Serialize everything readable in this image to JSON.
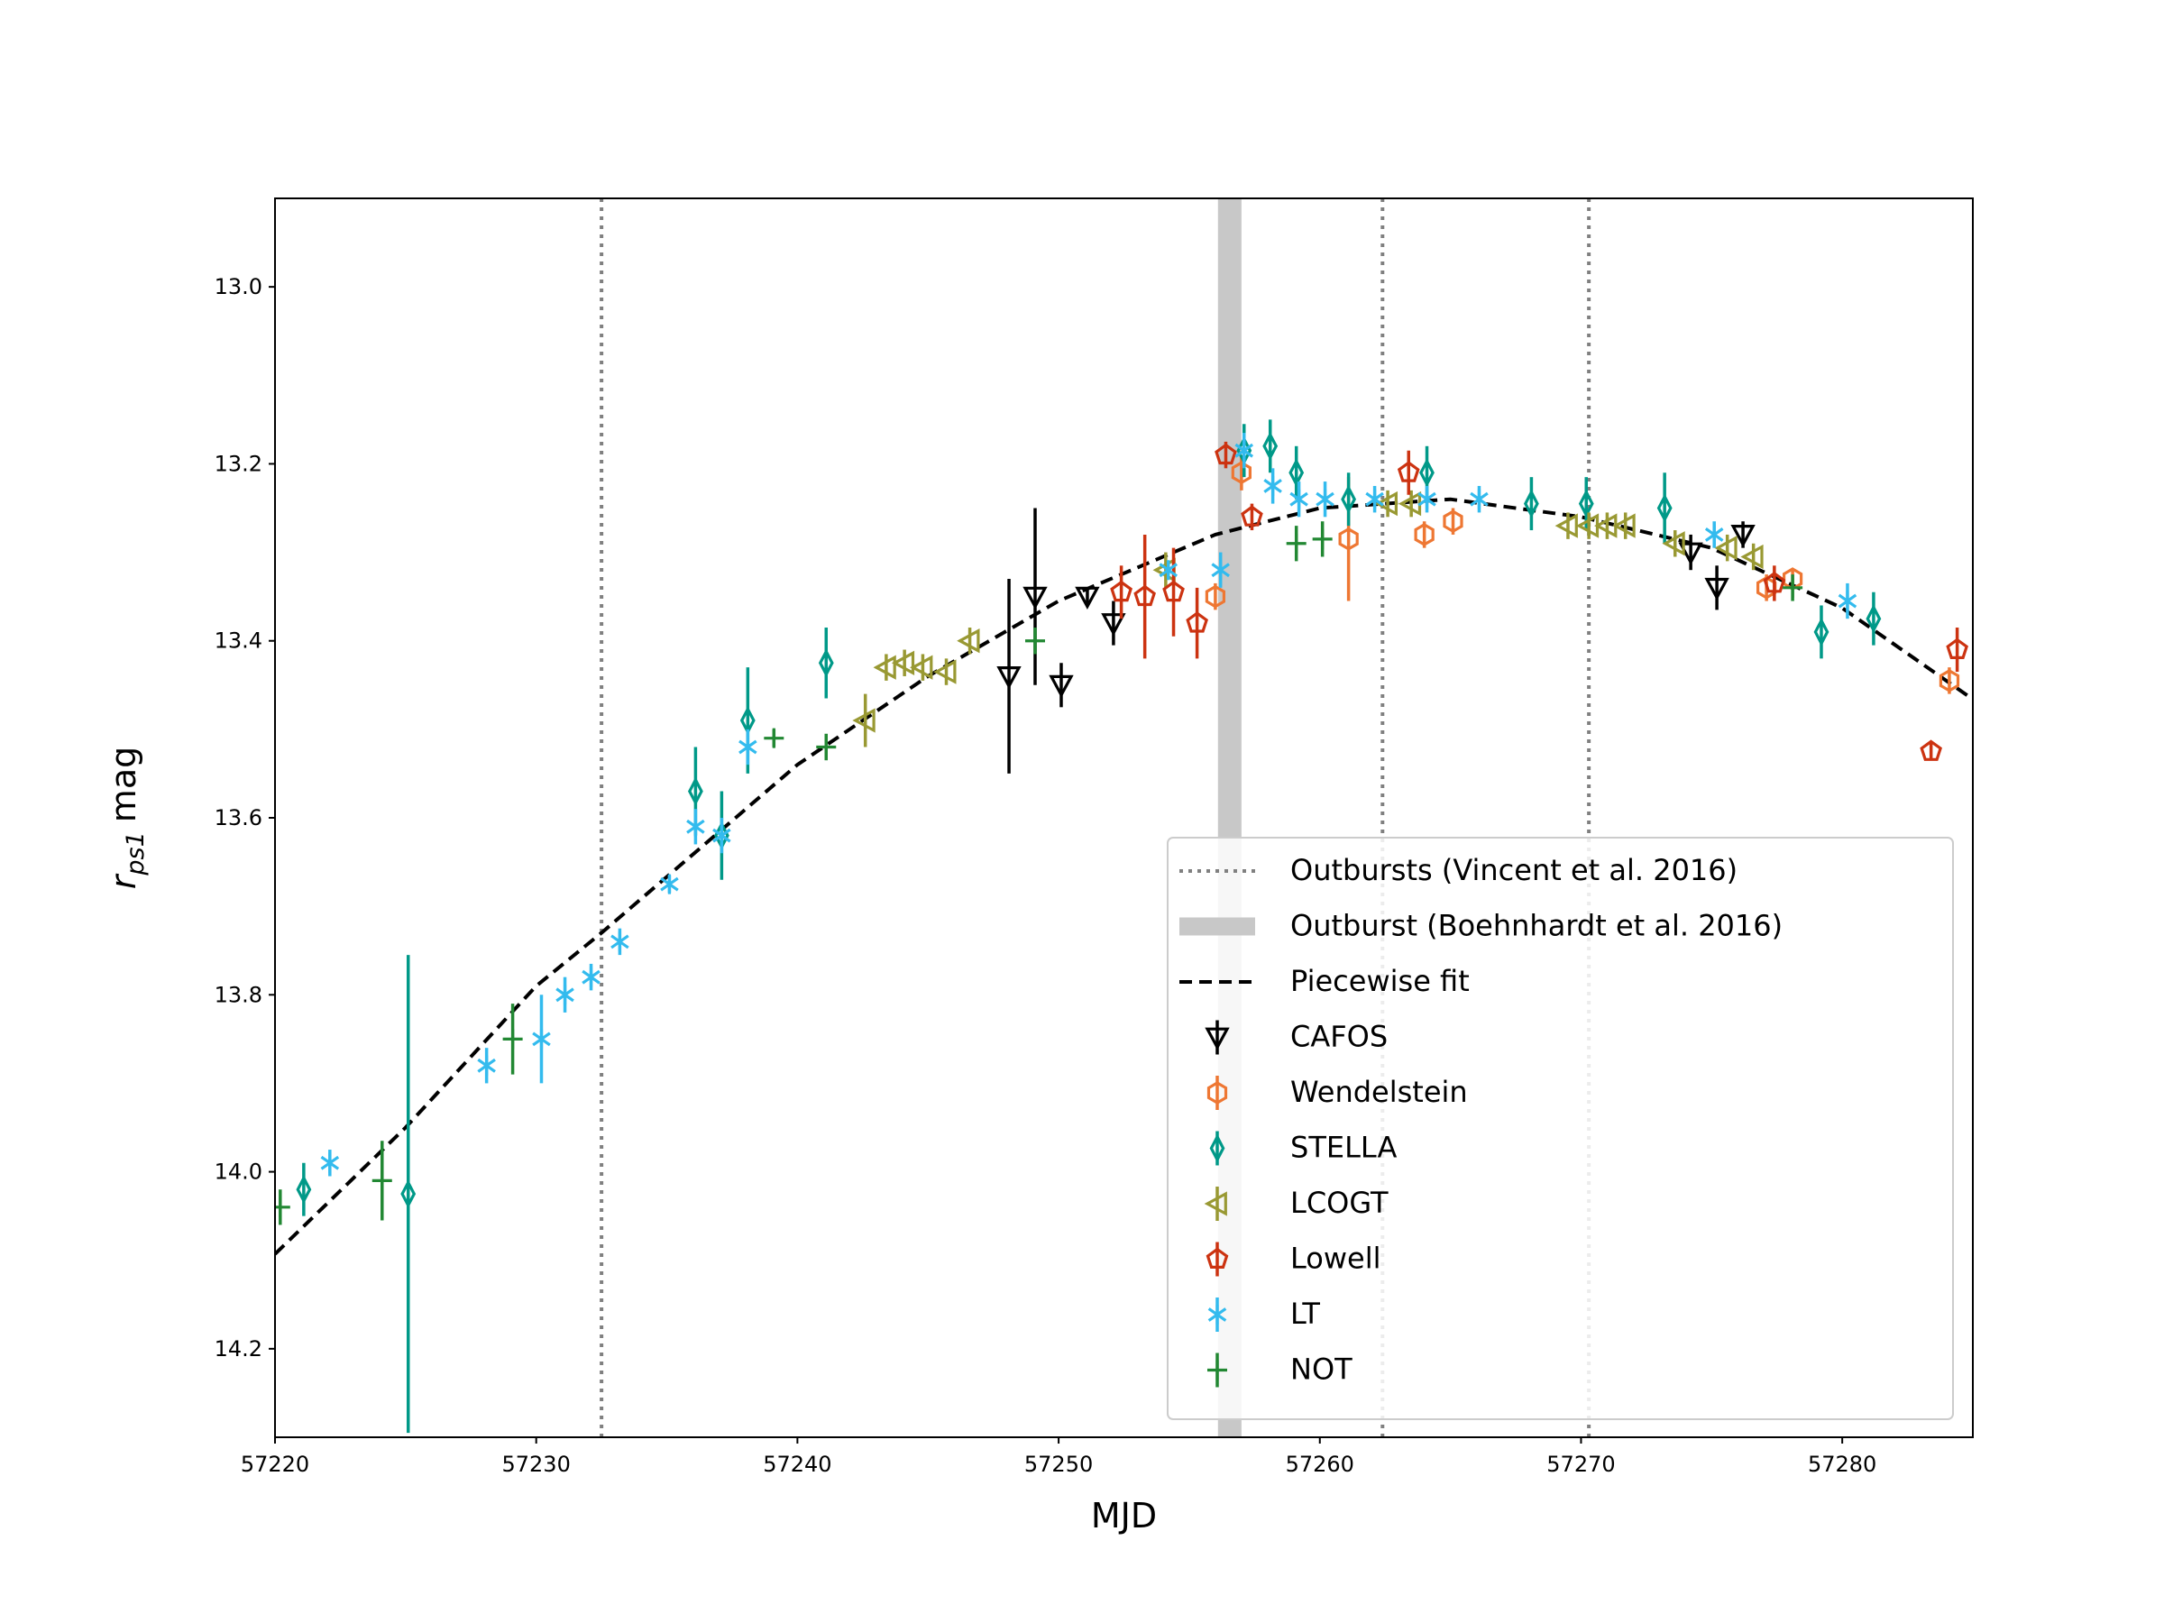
{
  "chart_data": {
    "type": "scatter",
    "xlabel": "MJD",
    "ylabel": {
      "symbol": "r",
      "subscript": "ps1",
      "text": "mag"
    },
    "xlim": [
      57220,
      57285
    ],
    "ylim": [
      14.3,
      12.9
    ],
    "xticks": [
      57220,
      57230,
      57240,
      57250,
      57260,
      57270,
      57280
    ],
    "yticks": [
      {
        "value": 13.0,
        "label": "13.0"
      },
      13.2,
      13.4,
      13.6,
      13.8,
      {
        "value": 14.0,
        "label": "14.0"
      },
      14.2
    ],
    "legend": "lower right",
    "vlines": {
      "name": "Outbursts (Vincent et al. 2016)",
      "color": "#808080",
      "x": [
        57232.5,
        57262.4,
        57270.3
      ]
    },
    "band": {
      "name": "Outburst (Boehnhardt et al. 2016)",
      "color": "#c8c8c8",
      "x": [
        57256.1,
        57257.0
      ]
    },
    "fit": {
      "name": "Piecewise fit",
      "color": "#000000",
      "x": [
        57220,
        57225,
        57230,
        57232.5,
        57240,
        57245,
        57250,
        57256,
        57260,
        57265,
        57270,
        57275,
        57280,
        57285
      ],
      "values": [
        14.093,
        13.95,
        13.79,
        13.73,
        13.54,
        13.44,
        13.355,
        13.28,
        13.25,
        13.24,
        13.26,
        13.295,
        13.363,
        13.466
      ]
    },
    "series": [
      {
        "name": "CAFOS",
        "color": "#000000",
        "marker": "triangle-down",
        "x": [
          57248.1,
          57249.1,
          57250.1,
          57251.1,
          57252.1,
          57274.2,
          57275.2,
          57276.2
        ],
        "values": [
          13.44,
          13.35,
          13.45,
          13.35,
          13.38,
          13.3,
          13.34,
          13.28
        ],
        "errors": [
          0.11,
          0.1,
          0.025,
          0.01,
          0.025,
          0.02,
          0.025,
          0.015
        ]
      },
      {
        "name": "Wendelstein",
        "color": "#ee7733",
        "marker": "hexagon",
        "x": [
          57256.0,
          57257.0,
          57261.1,
          57264.0,
          57265.1,
          57277.1,
          57278.1,
          57284.1
        ],
        "values": [
          13.35,
          13.21,
          13.285,
          13.28,
          13.265,
          13.34,
          13.33,
          13.445
        ],
        "errors": [
          0.015,
          0.02,
          0.07,
          0.015,
          0.015,
          0.015,
          0.01,
          0.015
        ]
      },
      {
        "name": "STELLA",
        "color": "#009988",
        "marker": "thin-diamond",
        "x": [
          57221.1,
          57225.1,
          57236.1,
          57237.1,
          57238.1,
          57241.1,
          57257.1,
          57258.1,
          57259.1,
          57261.1,
          57264.1,
          57268.1,
          57270.2,
          57273.2,
          57279.2,
          57281.2
        ],
        "values": [
          14.02,
          14.025,
          13.57,
          13.62,
          13.49,
          13.425,
          13.185,
          13.18,
          13.21,
          13.24,
          13.21,
          13.245,
          13.245,
          13.25,
          13.39,
          13.375
        ],
        "errors": [
          0.03,
          0.27,
          0.05,
          0.05,
          0.06,
          0.04,
          0.03,
          0.03,
          0.03,
          0.03,
          0.03,
          0.03,
          0.03,
          0.04,
          0.03,
          0.03
        ]
      },
      {
        "name": "LCOGT",
        "color": "#999933",
        "marker": "triangle-left",
        "x": [
          57242.6,
          57243.4,
          57244.1,
          57244.8,
          57245.7,
          57246.6,
          57254.1,
          57262.6,
          57263.5,
          57269.5,
          57270.3,
          57271.0,
          57271.7,
          57273.6,
          57275.6,
          57276.6
        ],
        "values": [
          13.49,
          13.43,
          13.425,
          13.43,
          13.435,
          13.4,
          13.32,
          13.245,
          13.245,
          13.27,
          13.27,
          13.27,
          13.27,
          13.29,
          13.295,
          13.305
        ],
        "errors": [
          0.03,
          0.015,
          0.015,
          0.015,
          0.015,
          0.015,
          0.02,
          0.015,
          0.015,
          0.015,
          0.015,
          0.015,
          0.015,
          0.015,
          0.015,
          0.015
        ]
      },
      {
        "name": "Lowell",
        "color": "#cc3311",
        "marker": "pentagon",
        "x": [
          57252.4,
          57253.3,
          57254.4,
          57255.3,
          57256.4,
          57257.4,
          57263.4,
          57277.4,
          57283.4,
          57284.4
        ],
        "values": [
          13.345,
          13.35,
          13.345,
          13.38,
          13.19,
          13.26,
          13.21,
          13.335,
          13.525,
          13.41
        ],
        "errors": [
          0.03,
          0.07,
          0.05,
          0.04,
          0.015,
          0.015,
          0.025,
          0.02,
          0.01,
          0.025
        ]
      },
      {
        "name": "LT",
        "color": "#33bbee",
        "marker": "star",
        "x": [
          57222.1,
          57228.1,
          57230.2,
          57231.1,
          57232.1,
          57233.2,
          57235.1,
          57236.1,
          57237.1,
          57238.1,
          57254.2,
          57256.2,
          57257.1,
          57258.2,
          57259.2,
          57260.2,
          57262.1,
          57264.1,
          57266.1,
          57275.1,
          57280.2
        ],
        "values": [
          13.99,
          13.88,
          13.85,
          13.8,
          13.78,
          13.74,
          13.675,
          13.61,
          13.62,
          13.52,
          13.32,
          13.32,
          13.185,
          13.225,
          13.24,
          13.24,
          13.24,
          13.24,
          13.24,
          13.28,
          13.355
        ],
        "errors": [
          0.015,
          0.02,
          0.05,
          0.02,
          0.015,
          0.015,
          0.01,
          0.02,
          0.02,
          0.02,
          0.01,
          0.02,
          0.02,
          0.02,
          0.02,
          0.02,
          0.015,
          0.015,
          0.015,
          0.015,
          0.02
        ]
      },
      {
        "name": "NOT",
        "color": "#228833",
        "marker": "plus",
        "x": [
          57220.2,
          57224.1,
          57229.1,
          57239.1,
          57241.1,
          57249.1,
          57259.1,
          57260.1,
          57278.1
        ],
        "values": [
          14.04,
          14.01,
          13.85,
          13.51,
          13.52,
          13.4,
          13.29,
          13.285,
          13.34
        ],
        "errors": [
          0.02,
          0.045,
          0.04,
          0.01,
          0.015,
          0.015,
          0.02,
          0.02,
          0.015
        ]
      }
    ]
  }
}
